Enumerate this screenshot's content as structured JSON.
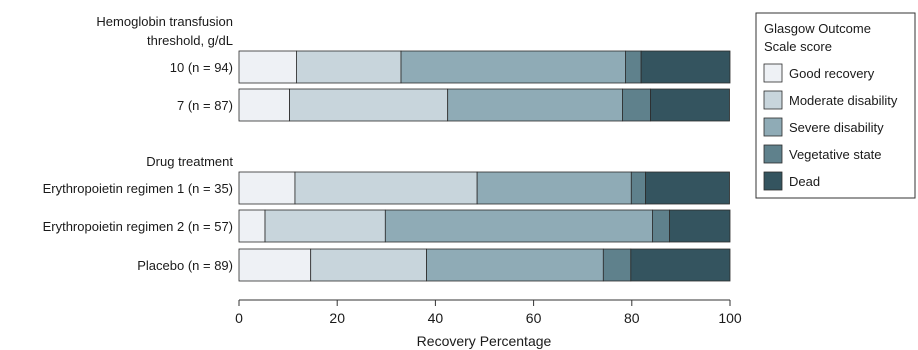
{
  "chart_data": {
    "type": "bar",
    "orientation": "horizontal",
    "stacked": true,
    "xlabel": "Recovery Percentage",
    "xlim": [
      0,
      100
    ],
    "xticks": [
      0,
      20,
      40,
      60,
      80,
      100
    ],
    "groups": [
      {
        "label": "Hemoglobin transfusion threshold, g/dL",
        "categories": [
          "10 (n = 94)",
          "7 (n = 87)"
        ]
      },
      {
        "label": "Drug treatment",
        "categories": [
          "Erythropoietin regimen 1 (n = 35)",
          "Erythropoietin regimen 2 (n = 57)",
          "Placebo (n = 89)"
        ]
      }
    ],
    "categories": [
      "10 (n = 94)",
      "7 (n = 87)",
      "Erythropoietin regimen 1 (n = 35)",
      "Erythropoietin regimen 2 (n = 57)",
      "Placebo (n = 89)"
    ],
    "legend_title": "Glasgow Outcome Scale score",
    "legend_position": "top-right",
    "series": [
      {
        "name": "Good recovery",
        "color": "#eef1f5",
        "values": [
          11.7,
          10.3,
          11.4,
          5.3,
          14.6
        ]
      },
      {
        "name": "Moderate disability",
        "color": "#c8d5dc",
        "values": [
          21.3,
          32.2,
          37.1,
          24.5,
          23.6
        ]
      },
      {
        "name": "Severe disability",
        "color": "#8fabb6",
        "values": [
          45.7,
          35.6,
          31.4,
          54.4,
          36.0
        ]
      },
      {
        "name": "Vegetative state",
        "color": "#5f818c",
        "values": [
          3.2,
          5.7,
          2.9,
          3.5,
          5.6
        ]
      },
      {
        "name": "Dead",
        "color": "#34545f",
        "values": [
          18.1,
          16.1,
          17.1,
          12.3,
          20.2
        ]
      }
    ]
  }
}
